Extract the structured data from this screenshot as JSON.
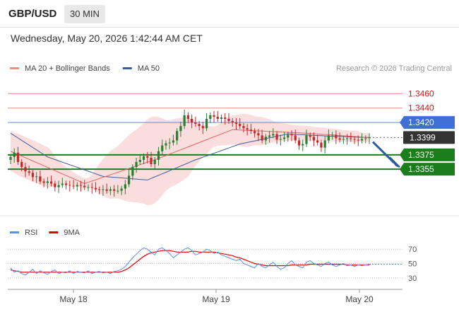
{
  "header": {
    "symbol": "GBP/USD",
    "timeframe": "30 MIN"
  },
  "datetime": "Wednesday, May 20, 2026 1:42:44 AM CET",
  "copyright": "Research © 2026 Trading Central",
  "colors": {
    "up": "#2e7d32",
    "down": "#c62828",
    "resistance": "#f28b82",
    "pivot": "#5b8def",
    "support": "#1b7d1b",
    "bb_fill": "#f8d0d0",
    "ma20": "#e06666",
    "ma50": "#3d5c99",
    "current": "#333333",
    "arrow": "#2f5a9e",
    "rsi": "#5b8def",
    "rsi_ma": "#e00000"
  },
  "chart_data": [
    {
      "type": "candlestick",
      "legend": [
        {
          "name": "MA 20 + Bollinger Bands",
          "color": "#f28b82"
        },
        {
          "name": "MA 50",
          "color": "#3d5c99"
        }
      ],
      "x_ticks": [
        "May 18",
        "May 19",
        "May 20"
      ],
      "ylim": [
        1.3305,
        1.3484
      ],
      "levels": [
        {
          "label": "1.3460",
          "value": 1.346,
          "kind": "resistance"
        },
        {
          "label": "1.3440",
          "value": 1.344,
          "kind": "resistance"
        },
        {
          "label": "1.3420",
          "value": 1.342,
          "kind": "pivot"
        },
        {
          "label": "1.3399",
          "value": 1.3399,
          "kind": "current"
        },
        {
          "label": "1.3375",
          "value": 1.3375,
          "kind": "support"
        },
        {
          "label": "1.3355",
          "value": 1.3355,
          "kind": "support"
        }
      ],
      "close": [
        1.3372,
        1.3378,
        1.3365,
        1.3358,
        1.3352,
        1.335,
        1.3344,
        1.3345,
        1.3338,
        1.3336,
        1.3338,
        1.3335,
        1.333,
        1.3333,
        1.3335,
        1.3333,
        1.3332,
        1.3331,
        1.3333,
        1.3332,
        1.333,
        1.333,
        1.3329,
        1.3327,
        1.3326,
        1.3327,
        1.3325,
        1.3327,
        1.3325,
        1.3325,
        1.3328,
        1.3334,
        1.3346,
        1.3358,
        1.3365,
        1.3368,
        1.3373,
        1.3371,
        1.3362,
        1.3368,
        1.338,
        1.3388,
        1.3391,
        1.3392,
        1.3395,
        1.3408,
        1.3415,
        1.343,
        1.3425,
        1.342,
        1.3418,
        1.3415,
        1.3412,
        1.3425,
        1.343,
        1.3428,
        1.3425,
        1.3427,
        1.3425,
        1.3422,
        1.342,
        1.3418,
        1.3415,
        1.3412,
        1.341,
        1.3408,
        1.3405,
        1.3402,
        1.3395,
        1.34,
        1.3402,
        1.3404,
        1.3396,
        1.3397,
        1.3399,
        1.3403,
        1.3402,
        1.3395,
        1.3388,
        1.339,
        1.3402,
        1.34,
        1.3395,
        1.3392,
        1.3385,
        1.3395,
        1.3402,
        1.3403,
        1.3398,
        1.3396,
        1.3397,
        1.3398,
        1.3397,
        1.3396,
        1.3395,
        1.3397,
        1.3398,
        1.3399
      ],
      "series": [
        {
          "name": "MA 20",
          "x": [
            0,
            20,
            40,
            60,
            80,
            97
          ],
          "values": [
            1.338,
            1.3335,
            1.337,
            1.341,
            1.3405,
            1.3399
          ]
        },
        {
          "name": "MA 50",
          "x": [
            0,
            10,
            25,
            37,
            50,
            62,
            75,
            86,
            97
          ],
          "values": [
            1.3405,
            1.3372,
            1.3345,
            1.334,
            1.3368,
            1.339,
            1.3404,
            1.3401,
            1.3399
          ]
        }
      ]
    },
    {
      "type": "line",
      "legend": [
        {
          "name": "RSI",
          "color": "#5b8def"
        },
        {
          "name": "9MA",
          "color": "#e00000"
        }
      ],
      "y_ticks": [
        70,
        50,
        30
      ],
      "ylim": [
        18,
        82
      ],
      "series": [
        {
          "name": "RSI",
          "values": [
            44,
            38,
            40,
            36,
            34,
            38,
            42,
            36,
            40,
            37,
            35,
            39,
            41,
            36,
            38,
            37,
            40,
            36,
            39,
            38,
            37,
            40,
            36,
            38,
            39,
            37,
            38,
            36,
            39,
            40,
            42,
            46,
            52,
            58,
            63,
            68,
            72,
            70,
            66,
            62,
            70,
            72,
            68,
            64,
            58,
            62,
            66,
            70,
            72,
            68,
            62,
            64,
            66,
            70,
            68,
            64,
            66,
            62,
            60,
            58,
            56,
            54,
            56,
            50,
            48,
            46,
            44,
            50,
            46,
            44,
            48,
            52,
            46,
            42,
            44,
            50,
            54,
            48,
            46,
            44,
            52,
            54,
            50,
            48,
            46,
            50,
            52,
            48,
            46,
            48,
            50,
            47,
            48,
            46,
            48,
            47,
            48,
            49
          ]
        },
        {
          "name": "9MA",
          "values": [
            41,
            40,
            39,
            38,
            38,
            38,
            38,
            38,
            38,
            38,
            38,
            38,
            38,
            38,
            38,
            38,
            38,
            38,
            38,
            38,
            38,
            38,
            38,
            38,
            38,
            38,
            38,
            38,
            38,
            38,
            39,
            41,
            44,
            48,
            52,
            56,
            60,
            63,
            65,
            66,
            67,
            68,
            68,
            68,
            67,
            66,
            66,
            66,
            66,
            67,
            67,
            66,
            66,
            66,
            66,
            66,
            65,
            64,
            63,
            62,
            61,
            59,
            58,
            56,
            54,
            52,
            50,
            49,
            48,
            47,
            47,
            47,
            47,
            47,
            47,
            47,
            48,
            48,
            48,
            48,
            48,
            49,
            49,
            49,
            49,
            49,
            49,
            49,
            49,
            49,
            49,
            48,
            48,
            48,
            48,
            48,
            48,
            48
          ]
        }
      ]
    }
  ]
}
